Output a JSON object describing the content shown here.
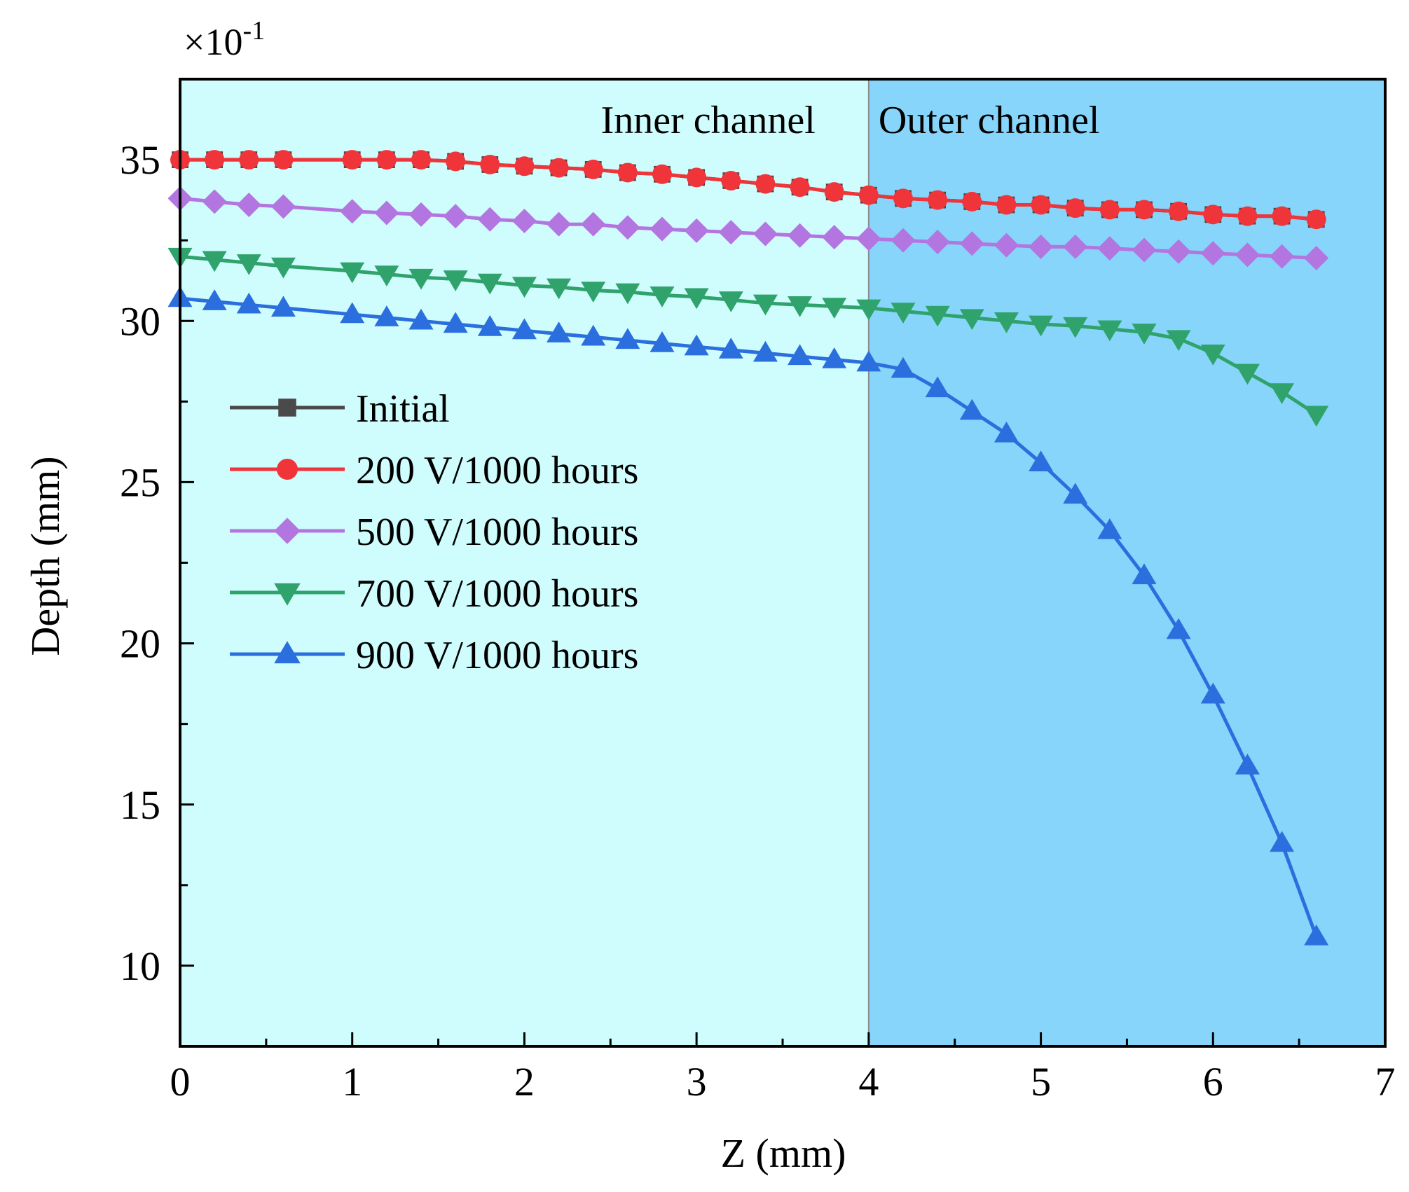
{
  "chart_data": {
    "type": "line",
    "title": "",
    "xlabel": "Z (mm)",
    "ylabel": "Depth (mm)",
    "y_multiplier": "×10",
    "y_multiplier_exp": "-1",
    "xlim": [
      0,
      7
    ],
    "ylim": [
      7.5,
      37.5
    ],
    "x_ticks": [
      0,
      1,
      2,
      3,
      4,
      5,
      6,
      7
    ],
    "x_tick_labels": [
      "0",
      "1",
      "2",
      "3",
      "4",
      "5",
      "6",
      "7"
    ],
    "y_ticks": [
      10,
      15,
      20,
      25,
      30,
      35
    ],
    "y_tick_labels": [
      "10",
      "15",
      "20",
      "25",
      "30",
      "35"
    ],
    "grid": false,
    "legend_position": "middle-left",
    "regions": [
      {
        "label": "Inner channel",
        "x_range": [
          0,
          4
        ],
        "color": "#cffcfd"
      },
      {
        "label": "Outer channel",
        "x_range": [
          4,
          7
        ],
        "color": "#87d5fa"
      }
    ],
    "x": [
      0,
      0.2,
      0.4,
      0.6,
      1.0,
      1.2,
      1.4,
      1.6,
      1.8,
      2.0,
      2.2,
      2.4,
      2.6,
      2.8,
      3.0,
      3.2,
      3.4,
      3.6,
      3.8,
      4.0,
      4.2,
      4.4,
      4.6,
      4.8,
      5.0,
      5.2,
      5.4,
      5.6,
      5.8,
      6.0,
      6.2,
      6.4,
      6.6
    ],
    "series": [
      {
        "name": "Initial",
        "color": "#4a4a4a",
        "marker": "square",
        "values": [
          35.0,
          35.0,
          35.0,
          35.0,
          35.0,
          35.0,
          35.0,
          34.95,
          34.85,
          34.8,
          34.75,
          34.7,
          34.6,
          34.55,
          34.45,
          34.35,
          34.25,
          34.15,
          34.0,
          33.9,
          33.8,
          33.75,
          33.7,
          33.6,
          33.6,
          33.5,
          33.45,
          33.45,
          33.4,
          33.3,
          33.25,
          33.25,
          33.15
        ]
      },
      {
        "name": "200 V/1000 hours",
        "color": "#f0353a",
        "marker": "circle",
        "values": [
          35.0,
          35.0,
          35.0,
          35.0,
          35.0,
          35.0,
          35.0,
          34.95,
          34.85,
          34.8,
          34.75,
          34.7,
          34.6,
          34.55,
          34.45,
          34.35,
          34.25,
          34.15,
          34.0,
          33.9,
          33.8,
          33.75,
          33.7,
          33.6,
          33.6,
          33.5,
          33.45,
          33.45,
          33.4,
          33.3,
          33.25,
          33.25,
          33.15
        ]
      },
      {
        "name": "500 V/1000 hours",
        "color": "#b375e0",
        "marker": "diamond",
        "values": [
          33.8,
          33.7,
          33.6,
          33.55,
          33.4,
          33.35,
          33.3,
          33.25,
          33.15,
          33.1,
          33.0,
          33.0,
          32.9,
          32.85,
          32.8,
          32.75,
          32.7,
          32.65,
          32.6,
          32.55,
          32.5,
          32.45,
          32.4,
          32.35,
          32.3,
          32.3,
          32.25,
          32.2,
          32.15,
          32.1,
          32.05,
          32.0,
          31.95
        ]
      },
      {
        "name": "700 V/1000 hours",
        "color": "#2fa36b",
        "marker": "triangle-down",
        "values": [
          32.0,
          31.9,
          31.8,
          31.7,
          31.55,
          31.45,
          31.35,
          31.3,
          31.2,
          31.1,
          31.05,
          30.95,
          30.9,
          30.8,
          30.75,
          30.65,
          30.55,
          30.5,
          30.45,
          30.4,
          30.3,
          30.2,
          30.1,
          30.0,
          29.9,
          29.85,
          29.75,
          29.65,
          29.45,
          29.0,
          28.4,
          27.8,
          27.1
        ]
      },
      {
        "name": "900 V/1000 hours",
        "color": "#2b6fde",
        "marker": "triangle-up",
        "values": [
          30.7,
          30.6,
          30.5,
          30.4,
          30.2,
          30.1,
          30.0,
          29.9,
          29.8,
          29.7,
          29.6,
          29.5,
          29.4,
          29.3,
          29.2,
          29.1,
          29.0,
          28.9,
          28.8,
          28.7,
          28.5,
          27.9,
          27.2,
          26.5,
          25.6,
          24.6,
          23.5,
          22.1,
          20.4,
          18.4,
          16.2,
          13.8,
          10.9
        ]
      }
    ]
  }
}
